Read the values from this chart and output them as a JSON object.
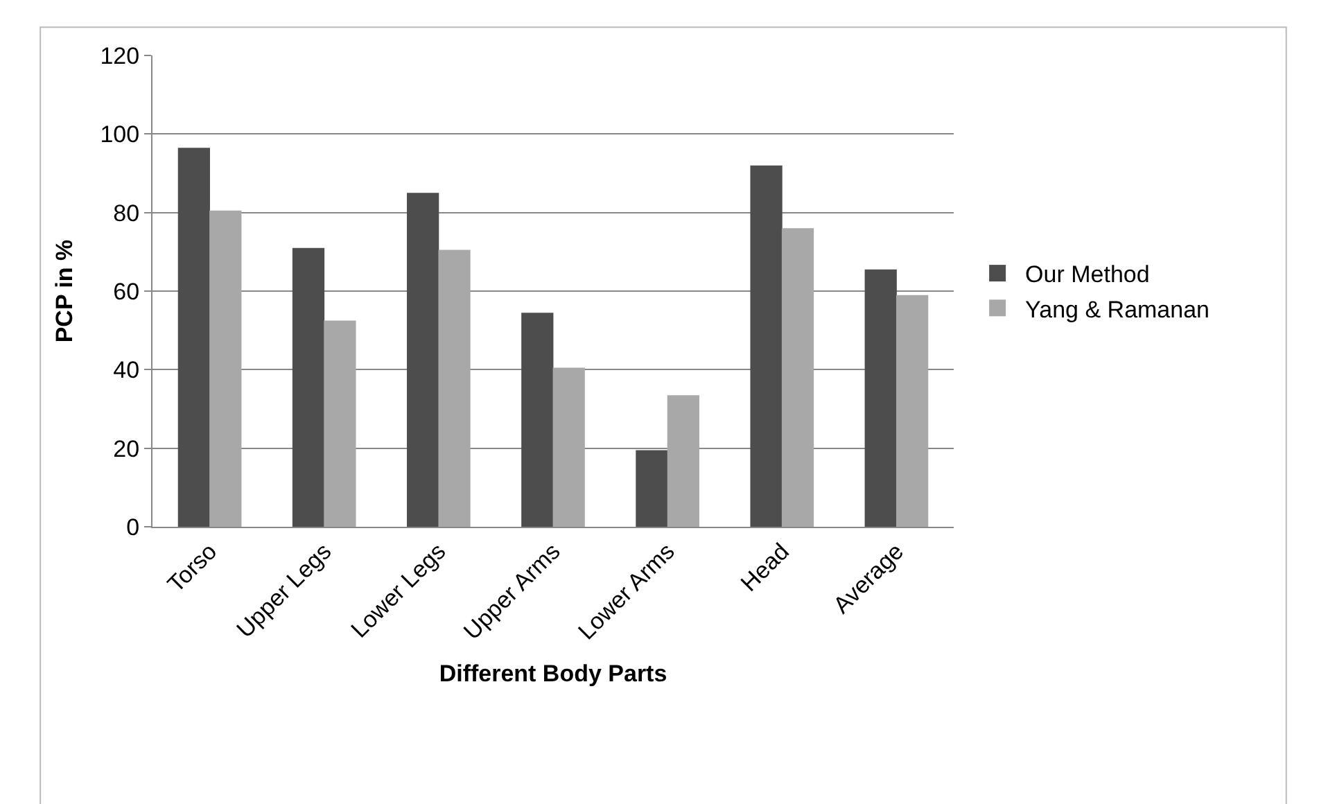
{
  "chart_data": {
    "type": "bar",
    "xlabel": "Different Body Parts",
    "ylabel": "PCP in %",
    "categories": [
      "Torso",
      "Upper Legs",
      "Lower Legs",
      "Upper Arms",
      "Lower Arms",
      "Head",
      "Average"
    ],
    "series": [
      {
        "name": "Our Method",
        "color": "#4d4d4d",
        "values": [
          96.5,
          71,
          85,
          54.5,
          19.5,
          92,
          65.5
        ]
      },
      {
        "name": "Yang & Ramanan",
        "color": "#a8a8a8",
        "values": [
          80.5,
          52.5,
          70.5,
          40.5,
          33.5,
          76,
          59
        ]
      }
    ],
    "ylim": [
      0,
      120
    ],
    "yticks": [
      0,
      20,
      40,
      60,
      80,
      100,
      120
    ],
    "grid": "y",
    "legend": "right"
  }
}
